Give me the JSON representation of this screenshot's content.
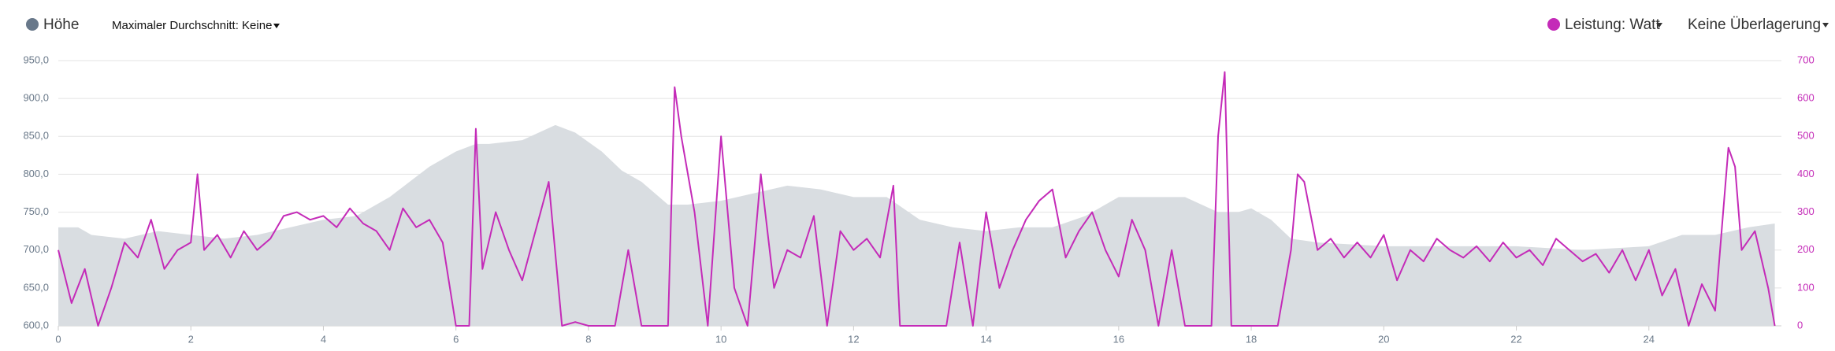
{
  "chart_data": {
    "type": "line",
    "controls": {
      "max_average": "Maximaler Durchschnitt: Keine",
      "overlay": "Keine Überlagerung"
    },
    "xlim": [
      0,
      26
    ],
    "xticks": [
      0,
      2,
      4,
      6,
      8,
      10,
      12,
      14,
      16,
      18,
      20,
      22,
      24
    ],
    "ylim": [
      600,
      950
    ],
    "yticks": [
      {
        "value": 600,
        "label": "600,0"
      },
      {
        "value": 650,
        "label": "650,0"
      },
      {
        "value": 700,
        "label": "700,0"
      },
      {
        "value": 750,
        "label": "750,0"
      },
      {
        "value": 800,
        "label": "800,0"
      },
      {
        "value": 850,
        "label": "850,0"
      },
      {
        "value": 900,
        "label": "900,0"
      },
      {
        "value": 950,
        "label": "950,0"
      }
    ],
    "y2lim": [
      0,
      700
    ],
    "y2ticks": [
      0,
      100,
      200,
      300,
      400,
      500,
      600,
      700
    ],
    "grid": true,
    "series": [
      {
        "name": "Höhe",
        "type": "area",
        "color": "#68788a",
        "fill": "#d9dde1",
        "x": [
          0,
          0.3,
          0.5,
          1,
          1.5,
          2,
          2.5,
          3,
          3.5,
          4,
          4.5,
          5,
          5.3,
          5.6,
          6,
          6.3,
          6.5,
          7,
          7.5,
          7.8,
          8.2,
          8.5,
          8.8,
          9.2,
          9.5,
          10,
          10.5,
          11,
          11.5,
          12,
          12.5,
          13,
          13.5,
          14,
          14.5,
          15,
          15.5,
          16,
          16.5,
          17,
          17.5,
          17.8,
          18,
          18.3,
          18.6,
          19,
          20,
          21,
          22,
          23,
          24,
          24.5,
          25,
          25.5,
          25.9
        ],
        "values": [
          730,
          730,
          720,
          715,
          725,
          720,
          715,
          720,
          730,
          740,
          745,
          770,
          790,
          810,
          830,
          840,
          840,
          845,
          865,
          855,
          830,
          805,
          790,
          760,
          760,
          765,
          775,
          785,
          780,
          770,
          770,
          740,
          730,
          725,
          730,
          730,
          745,
          770,
          770,
          770,
          750,
          750,
          755,
          740,
          715,
          710,
          705,
          705,
          705,
          700,
          705,
          720,
          720,
          730,
          735
        ]
      },
      {
        "name": "Leistung: Watt",
        "type": "line",
        "axis": "y2",
        "color": "#c42bb8",
        "x": [
          0,
          0.2,
          0.4,
          0.6,
          0.8,
          1.0,
          1.2,
          1.4,
          1.6,
          1.8,
          2.0,
          2.1,
          2.2,
          2.4,
          2.6,
          2.8,
          3.0,
          3.2,
          3.4,
          3.6,
          3.8,
          4.0,
          4.2,
          4.4,
          4.6,
          4.8,
          5.0,
          5.2,
          5.4,
          5.6,
          5.8,
          6.0,
          6.2,
          6.3,
          6.4,
          6.6,
          6.8,
          7.0,
          7.2,
          7.4,
          7.6,
          7.8,
          8.0,
          8.4,
          8.6,
          8.8,
          9.2,
          9.3,
          9.4,
          9.6,
          9.8,
          10.0,
          10.2,
          10.4,
          10.6,
          10.8,
          11.0,
          11.2,
          11.4,
          11.6,
          11.8,
          12.0,
          12.2,
          12.4,
          12.6,
          12.7,
          13.0,
          13.4,
          13.6,
          13.8,
          14.0,
          14.2,
          14.4,
          14.6,
          14.8,
          15.0,
          15.2,
          15.4,
          15.6,
          15.8,
          16.0,
          16.2,
          16.4,
          16.6,
          16.8,
          17.0,
          17.2,
          17.4,
          17.5,
          17.6,
          17.7,
          18.0,
          18.4,
          18.6,
          18.7,
          18.8,
          19.0,
          19.2,
          19.4,
          19.6,
          19.8,
          20.0,
          20.2,
          20.4,
          20.6,
          20.8,
          21.0,
          21.2,
          21.4,
          21.6,
          21.8,
          22.0,
          22.2,
          22.4,
          22.6,
          22.8,
          23.0,
          23.2,
          23.4,
          23.6,
          23.8,
          24.0,
          24.2,
          24.4,
          24.6,
          24.8,
          25.0,
          25.2,
          25.3,
          25.4,
          25.6,
          25.8,
          25.9
        ],
        "values": [
          200,
          60,
          150,
          0,
          100,
          220,
          180,
          280,
          150,
          200,
          220,
          400,
          200,
          240,
          180,
          250,
          200,
          230,
          290,
          300,
          280,
          290,
          260,
          310,
          270,
          250,
          200,
          310,
          260,
          280,
          220,
          0,
          0,
          520,
          150,
          300,
          200,
          120,
          250,
          380,
          0,
          10,
          0,
          0,
          200,
          0,
          0,
          630,
          500,
          300,
          0,
          500,
          100,
          0,
          400,
          100,
          200,
          180,
          290,
          0,
          250,
          200,
          230,
          180,
          370,
          0,
          0,
          0,
          220,
          0,
          300,
          100,
          200,
          280,
          330,
          360,
          180,
          250,
          300,
          200,
          130,
          280,
          200,
          0,
          200,
          0,
          0,
          0,
          500,
          670,
          0,
          0,
          0,
          200,
          400,
          380,
          200,
          230,
          180,
          220,
          180,
          240,
          120,
          200,
          170,
          230,
          200,
          180,
          210,
          170,
          220,
          180,
          200,
          160,
          230,
          200,
          170,
          190,
          140,
          200,
          120,
          200,
          80,
          150,
          0,
          110,
          40,
          470,
          420,
          200,
          250,
          100,
          0
        ]
      }
    ]
  }
}
